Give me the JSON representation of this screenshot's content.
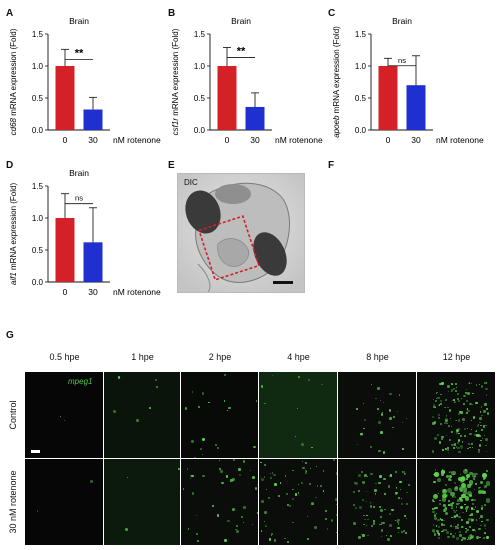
{
  "panels": {
    "A": {
      "letter": "A"
    },
    "B": {
      "letter": "B"
    },
    "C": {
      "letter": "C"
    },
    "D": {
      "letter": "D"
    },
    "E": {
      "letter": "E",
      "label": "DIC"
    },
    "F": {
      "letter": "F"
    },
    "G": {
      "letter": "G"
    }
  },
  "chart_data": [
    {
      "type": "bar",
      "panel": "A",
      "title": "Brain",
      "ylabel_gene": "cd68",
      "ylabel_rest": " mRNA expression (Fold)",
      "categories": [
        "0",
        "30"
      ],
      "values": [
        1.0,
        0.32
      ],
      "errors": [
        0.26,
        0.19
      ],
      "ylim": [
        0,
        1.5
      ],
      "yticks": [
        "0.0",
        "0.5",
        "1.0",
        "1.5"
      ],
      "unit_label": "nM rotenone",
      "significance": "**",
      "colors": [
        "#d42027",
        "#1f2fd0"
      ]
    },
    {
      "type": "bar",
      "panel": "B",
      "title": "Brain",
      "ylabel_gene": "csf1r",
      "ylabel_rest": " mRNA expression (Fold)",
      "categories": [
        "0",
        "30"
      ],
      "values": [
        1.0,
        0.36
      ],
      "errors": [
        0.29,
        0.22
      ],
      "ylim": [
        0,
        1.5
      ],
      "yticks": [
        "0.0",
        "0.5",
        "1.0",
        "1.5"
      ],
      "unit_label": "nM rotenone",
      "significance": "**",
      "colors": [
        "#d42027",
        "#1f2fd0"
      ]
    },
    {
      "type": "bar",
      "panel": "C",
      "title": "Brain",
      "ylabel_gene": "apoeb",
      "ylabel_rest": " mRNA expression (Fold)",
      "categories": [
        "0",
        "30"
      ],
      "values": [
        1.0,
        0.7
      ],
      "errors": [
        0.12,
        0.46
      ],
      "ylim": [
        0,
        1.5
      ],
      "yticks": [
        "0.0",
        "0.5",
        "1.0",
        "1.5"
      ],
      "unit_label": "nM rotenone",
      "significance": "ns",
      "colors": [
        "#d42027",
        "#1f2fd0"
      ]
    },
    {
      "type": "bar",
      "panel": "D",
      "title": "Brain",
      "ylabel_gene": "aif1",
      "ylabel_rest": " mRNA expression (Fold)",
      "categories": [
        "0",
        "30"
      ],
      "values": [
        1.0,
        0.62
      ],
      "errors": [
        0.38,
        0.54
      ],
      "ylim": [
        0,
        1.5
      ],
      "yticks": [
        "0.0",
        "0.5",
        "1.0",
        "1.5"
      ],
      "unit_label": "nM rotenone",
      "significance": "ns",
      "colors": [
        "#d42027",
        "#1f2fd0"
      ]
    }
  ],
  "grid": {
    "columns": [
      "0.5 hpe",
      "1 hpe",
      "2 hpe",
      "4 hpe",
      "8 hpe",
      "12 hpe"
    ],
    "rows": [
      "Control",
      "30 nM rotenone"
    ],
    "channel_label": "mpeg1",
    "channel_color": "#4ec94a"
  }
}
